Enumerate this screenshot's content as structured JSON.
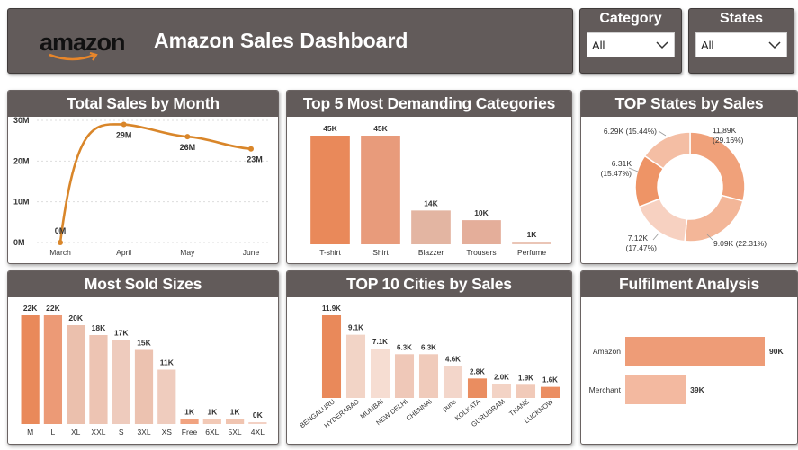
{
  "header": {
    "logo_text": "amazon",
    "title": "Amazon Sales Dashboard"
  },
  "filters": {
    "category": {
      "title": "Category",
      "value": "All"
    },
    "states": {
      "title": "States",
      "value": "All"
    }
  },
  "colors": {
    "panel": "#625b5a",
    "line": "#d9862a",
    "accent_dark": "#e8885a",
    "accent_light": "#f2c6b2"
  },
  "chart_data": [
    {
      "id": "monthly",
      "type": "line",
      "title": "Total Sales by Month",
      "x": [
        "March",
        "April",
        "May",
        "June"
      ],
      "values": [
        0,
        29,
        26,
        23
      ],
      "data_labels": [
        "0M",
        "29M",
        "26M",
        "23M"
      ],
      "y_ticks": [
        "0M",
        "10M",
        "20M",
        "30M"
      ],
      "ylim": [
        0,
        30
      ],
      "grid": true
    },
    {
      "id": "categories",
      "type": "bar",
      "title": "Top 5 Most Demanding Categories",
      "categories": [
        "T-shirt",
        "Shirt",
        "Blazzer",
        "Trousers",
        "Perfume"
      ],
      "values": [
        45,
        45,
        14,
        10,
        1
      ],
      "data_labels": [
        "45K",
        "45K",
        "14K",
        "10K",
        "1K"
      ],
      "colors": [
        "#e9895a",
        "#e89b7b",
        "#e3b5a2",
        "#e4ae9a",
        "#eac5b6"
      ]
    },
    {
      "id": "states",
      "type": "pie",
      "title": "TOP States by Sales",
      "values": [
        11.89,
        9.09,
        7.12,
        6.31,
        6.29
      ],
      "data_labels": [
        "11.89K (29.16%)",
        "9.09K (22.31%)",
        "7.12K (17.47%)",
        "6.31K (15.47%)",
        "6.29K (15.44%)"
      ],
      "colors": [
        "#f0a17a",
        "#f3b698",
        "#f7d1c1",
        "#ee9466",
        "#f4bea4"
      ]
    },
    {
      "id": "sizes",
      "type": "bar",
      "title": "Most Sold Sizes",
      "categories": [
        "M",
        "L",
        "XL",
        "XXL",
        "S",
        "3XL",
        "XS",
        "Free",
        "6XL",
        "5XL",
        "4XL"
      ],
      "values": [
        22,
        22,
        20,
        18,
        17,
        15,
        11,
        1,
        1,
        1,
        0.3
      ],
      "data_labels": [
        "22K",
        "22K",
        "20K",
        "18K",
        "17K",
        "15K",
        "11K",
        "1K",
        "1K",
        "1K",
        "0K"
      ],
      "colors": [
        "#e9895a",
        "#ec9a76",
        "#ebc0ad",
        "#edc4b3",
        "#eecbbd",
        "#ecc2b0",
        "#efccbe",
        "#f1a380",
        "#f2c9b6",
        "#f0c4b0",
        "#f3d1c4"
      ]
    },
    {
      "id": "cities",
      "type": "bar",
      "title": "TOP 10 Cities by Sales",
      "categories": [
        "BENGALURU",
        "HYDERABAD",
        "MUMBAI",
        "NEW DELHI",
        "CHENNAI",
        "pune",
        "KOLKATA",
        "GURUGRAM",
        "THANE",
        "LUCKNOW"
      ],
      "values": [
        11.9,
        9.1,
        7.1,
        6.3,
        6.3,
        4.6,
        2.8,
        2.0,
        1.9,
        1.6
      ],
      "data_labels": [
        "11.9K",
        "9.1K",
        "7.1K",
        "6.3K",
        "6.3K",
        "4.6K",
        "2.8K",
        "2.0K",
        "1.9K",
        "1.6K"
      ],
      "colors": [
        "#e9895a",
        "#f2d4c6",
        "#f6ddd2",
        "#efc8b8",
        "#f0cbbb",
        "#f3d6ca",
        "#ea8d60",
        "#f3d3c5",
        "#f1cab9",
        "#eb8e62"
      ]
    },
    {
      "id": "fulfilment",
      "type": "bar",
      "orientation": "horizontal",
      "title": "Fulfilment Analysis",
      "categories": [
        "Amazon",
        "Merchant"
      ],
      "values": [
        90,
        39
      ],
      "data_labels": [
        "90K",
        "39K"
      ],
      "colors": [
        "#ee9c77",
        "#f3b9a0"
      ]
    }
  ]
}
